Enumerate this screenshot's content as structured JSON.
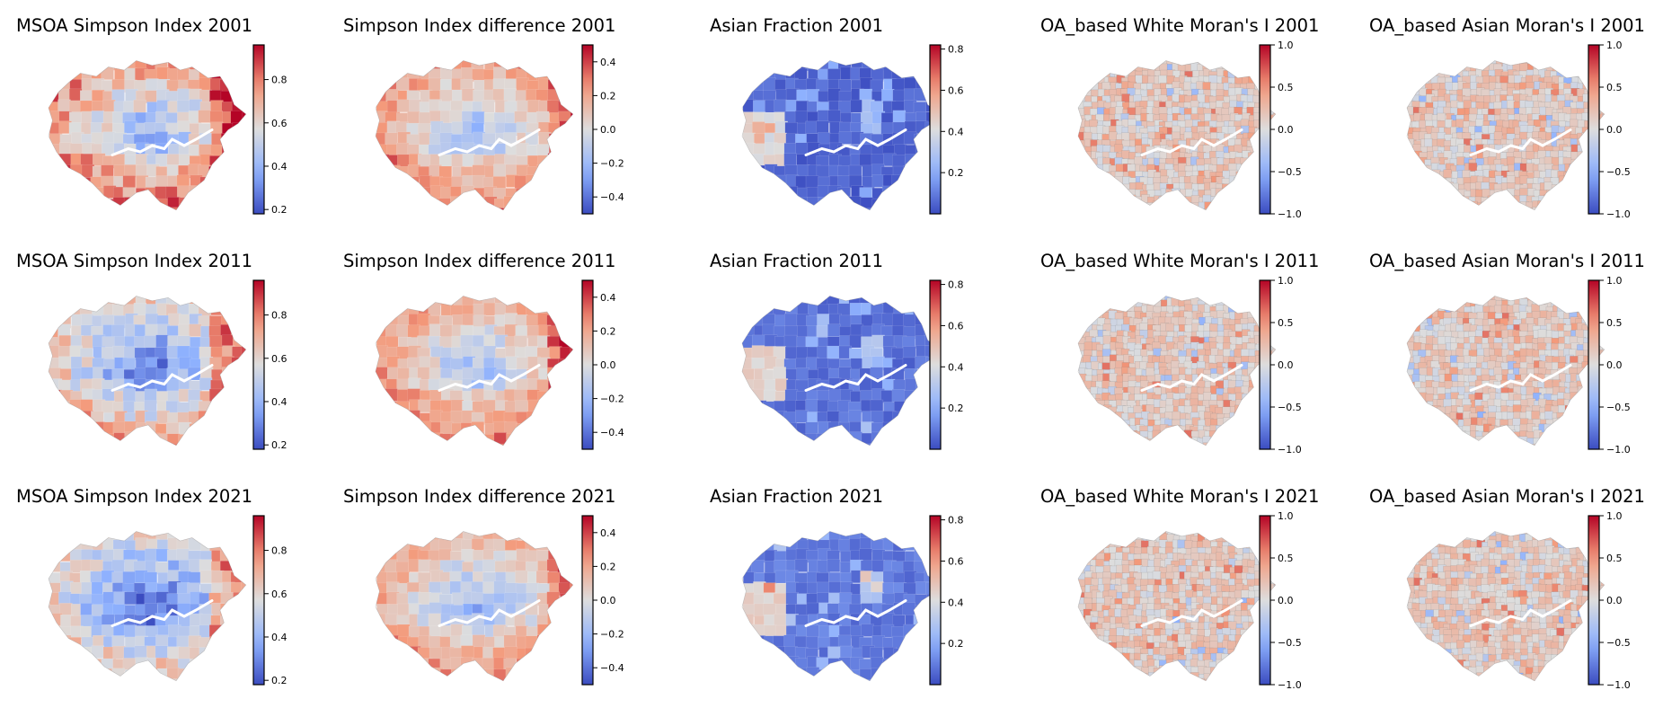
{
  "figure": {
    "palette": {
      "cold": "#3b4cc0",
      "mid": "#dddddd",
      "warm": "#b40426"
    },
    "rows": [
      {
        "year": "2001",
        "panels": [
          {
            "title": "MSOA Simpson Index 2001",
            "map": "simpson",
            "field_seed": 11,
            "field_bias": 0.05,
            "cbar": {
              "min": 0.18,
              "max": 0.96,
              "ticks": [
                "0.2",
                "0.4",
                "0.6",
                "0.8"
              ],
              "tick_values": [
                0.2,
                0.4,
                0.6,
                0.8
              ]
            }
          },
          {
            "title": "Simpson Index difference 2001",
            "map": "diff",
            "field_seed": 21,
            "field_bias": 0.0,
            "cbar": {
              "min": -0.5,
              "max": 0.5,
              "ticks": [
                "−0.4",
                "−0.2",
                "0.0",
                "0.2",
                "0.4"
              ],
              "tick_values": [
                -0.4,
                -0.2,
                0,
                0.2,
                0.4
              ]
            }
          },
          {
            "title": "Asian Fraction 2001",
            "map": "asian",
            "field_seed": 31,
            "field_bias": 0.0,
            "cbar": {
              "min": 0.0,
              "max": 0.82,
              "ticks": [
                "0.2",
                "0.4",
                "0.6",
                "0.8"
              ],
              "tick_values": [
                0.2,
                0.4,
                0.6,
                0.8
              ]
            }
          },
          {
            "title": "OA_based White Moran's I 2001",
            "map": "moran",
            "field_seed": 41,
            "field_bias": 0.0,
            "cbar": {
              "min": -1.0,
              "max": 1.0,
              "ticks": [
                "−1.0",
                "−0.5",
                "0.0",
                "0.5",
                "1.0"
              ],
              "tick_values": [
                -1,
                -0.5,
                0,
                0.5,
                1
              ]
            }
          },
          {
            "title": "OA_based Asian Moran's I 2001",
            "map": "moran",
            "field_seed": 51,
            "field_bias": 0.0,
            "cbar": {
              "min": -1.0,
              "max": 1.0,
              "ticks": [
                "−1.0",
                "−0.5",
                "0.0",
                "0.5",
                "1.0"
              ],
              "tick_values": [
                -1,
                -0.5,
                0,
                0.5,
                1
              ]
            }
          }
        ]
      },
      {
        "year": "2011",
        "panels": [
          {
            "title": "MSOA Simpson Index 2011",
            "map": "simpson",
            "field_seed": 12,
            "field_bias": -0.08,
            "cbar": {
              "min": 0.18,
              "max": 0.96,
              "ticks": [
                "0.2",
                "0.4",
                "0.6",
                "0.8"
              ],
              "tick_values": [
                0.2,
                0.4,
                0.6,
                0.8
              ]
            }
          },
          {
            "title": "Simpson Index difference 2011",
            "map": "diff",
            "field_seed": 22,
            "field_bias": 0.0,
            "cbar": {
              "min": -0.5,
              "max": 0.5,
              "ticks": [
                "−0.4",
                "−0.2",
                "0.0",
                "0.2",
                "0.4"
              ],
              "tick_values": [
                -0.4,
                -0.2,
                0,
                0.2,
                0.4
              ]
            }
          },
          {
            "title": "Asian Fraction 2011",
            "map": "asian",
            "field_seed": 32,
            "field_bias": 0.03,
            "cbar": {
              "min": 0.0,
              "max": 0.82,
              "ticks": [
                "0.2",
                "0.4",
                "0.6",
                "0.8"
              ],
              "tick_values": [
                0.2,
                0.4,
                0.6,
                0.8
              ]
            }
          },
          {
            "title": "OA_based White Moran's I 2011",
            "map": "moran",
            "field_seed": 42,
            "field_bias": 0.0,
            "cbar": {
              "min": -1.0,
              "max": 1.0,
              "ticks": [
                "−1.0",
                "−0.5",
                "0.0",
                "0.5",
                "1.0"
              ],
              "tick_values": [
                -1,
                -0.5,
                0,
                0.5,
                1
              ]
            }
          },
          {
            "title": "OA_based Asian Moran's I 2011",
            "map": "moran",
            "field_seed": 52,
            "field_bias": 0.0,
            "cbar": {
              "min": -1.0,
              "max": 1.0,
              "ticks": [
                "−1.0",
                "−0.5",
                "0.0",
                "0.5",
                "1.0"
              ],
              "tick_values": [
                -1,
                -0.5,
                0,
                0.5,
                1
              ]
            }
          }
        ]
      },
      {
        "year": "2021",
        "panels": [
          {
            "title": "MSOA Simpson Index 2021",
            "map": "simpson",
            "field_seed": 13,
            "field_bias": -0.15,
            "cbar": {
              "min": 0.18,
              "max": 0.96,
              "ticks": [
                "0.2",
                "0.4",
                "0.6",
                "0.8"
              ],
              "tick_values": [
                0.2,
                0.4,
                0.6,
                0.8
              ]
            }
          },
          {
            "title": "Simpson Index difference 2021",
            "map": "diff",
            "field_seed": 23,
            "field_bias": -0.03,
            "cbar": {
              "min": -0.5,
              "max": 0.5,
              "ticks": [
                "−0.4",
                "−0.2",
                "0.0",
                "0.2",
                "0.4"
              ],
              "tick_values": [
                -0.4,
                -0.2,
                0,
                0.2,
                0.4
              ]
            }
          },
          {
            "title": "Asian Fraction 2021",
            "map": "asian",
            "field_seed": 33,
            "field_bias": 0.05,
            "cbar": {
              "min": 0.0,
              "max": 0.82,
              "ticks": [
                "0.2",
                "0.4",
                "0.6",
                "0.8"
              ],
              "tick_values": [
                0.2,
                0.4,
                0.6,
                0.8
              ]
            }
          },
          {
            "title": "OA_based White Moran's I 2021",
            "map": "moran",
            "field_seed": 43,
            "field_bias": 0.0,
            "cbar": {
              "min": -1.0,
              "max": 1.0,
              "ticks": [
                "−1.0",
                "−0.5",
                "0.0",
                "0.5",
                "1.0"
              ],
              "tick_values": [
                -1,
                -0.5,
                0,
                0.5,
                1
              ]
            }
          },
          {
            "title": "OA_based Asian Moran's I 2021",
            "map": "moran",
            "field_seed": 53,
            "field_bias": 0.0,
            "cbar": {
              "min": -1.0,
              "max": 1.0,
              "ticks": [
                "−1.0",
                "−0.5",
                "0.0",
                "0.5",
                "1.0"
              ],
              "tick_values": [
                -1,
                -0.5,
                0,
                0.5,
                1
              ]
            }
          }
        ]
      }
    ]
  }
}
